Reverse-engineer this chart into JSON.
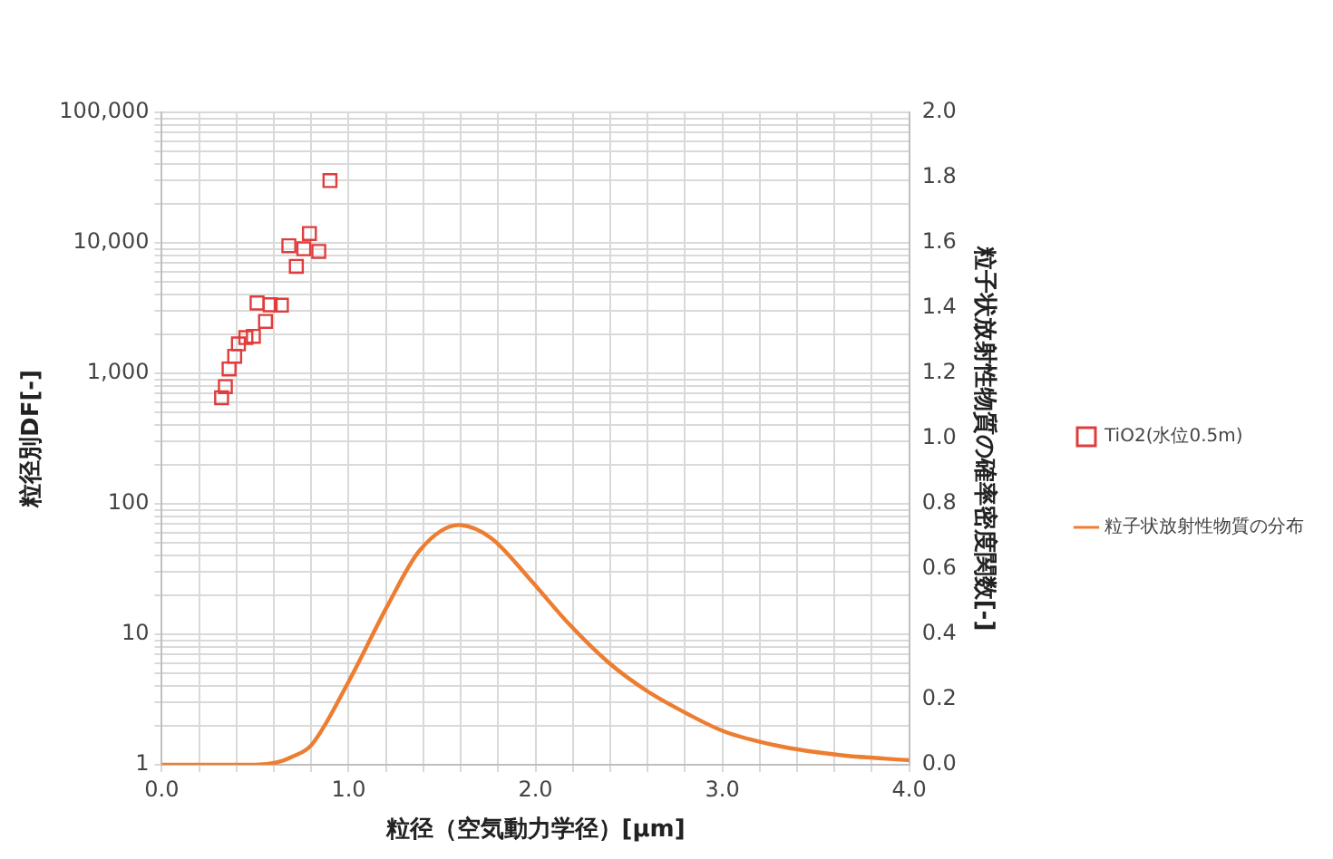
{
  "chart_data": {
    "type": "scatter",
    "xlabel": "粒径（空気動力学径）[μm]",
    "ylabel": "粒径別DF[-]",
    "y2label": "粒子状放射性物質の確率密度関数[-]",
    "log": "y",
    "grid": true,
    "legend": "right",
    "xlim": [
      0,
      4
    ],
    "xticks": [
      {
        "value": 0,
        "label": "0.0"
      },
      {
        "value": 0.2,
        "label": null
      },
      {
        "value": 0.4,
        "label": null
      },
      {
        "value": 0.6,
        "label": null
      },
      {
        "value": 0.8,
        "label": null
      },
      {
        "value": 1,
        "label": "1.0"
      },
      {
        "value": 1.2,
        "label": null
      },
      {
        "value": 1.4,
        "label": null
      },
      {
        "value": 1.6,
        "label": null
      },
      {
        "value": 1.8,
        "label": null
      },
      {
        "value": 2,
        "label": "2.0"
      },
      {
        "value": 2.2,
        "label": null
      },
      {
        "value": 2.4,
        "label": null
      },
      {
        "value": 2.6,
        "label": null
      },
      {
        "value": 2.8,
        "label": null
      },
      {
        "value": 3,
        "label": "3.0"
      },
      {
        "value": 3.2,
        "label": null
      },
      {
        "value": 3.4,
        "label": null
      },
      {
        "value": 3.6,
        "label": null
      },
      {
        "value": 3.8,
        "label": null
      },
      {
        "value": 4,
        "label": "4.0"
      }
    ],
    "ylim": [
      1,
      100000
    ],
    "yticks": [
      1,
      {
        "value": 2,
        "label": null
      },
      {
        "value": 3,
        "label": null
      },
      {
        "value": 4,
        "label": null
      },
      {
        "value": 5,
        "label": null
      },
      {
        "value": 6,
        "label": null
      },
      {
        "value": 7,
        "label": null
      },
      {
        "value": 8,
        "label": null
      },
      {
        "value": 9,
        "label": null
      },
      10,
      {
        "value": 20,
        "label": null
      },
      {
        "value": 30,
        "label": null
      },
      {
        "value": 40,
        "label": null
      },
      {
        "value": 50,
        "label": null
      },
      {
        "value": 60,
        "label": null
      },
      {
        "value": 70,
        "label": null
      },
      {
        "value": 80,
        "label": null
      },
      {
        "value": 90,
        "label": null
      },
      100,
      {
        "value": 200,
        "label": null
      },
      {
        "value": 300,
        "label": null
      },
      {
        "value": 400,
        "label": null
      },
      {
        "value": 500,
        "label": null
      },
      {
        "value": 600,
        "label": null
      },
      {
        "value": 700,
        "label": null
      },
      {
        "value": 800,
        "label": null
      },
      {
        "value": 900,
        "label": null
      },
      {
        "value": 1000,
        "label": "1,000"
      },
      {
        "value": 2000,
        "label": null
      },
      {
        "value": 3000,
        "label": null
      },
      {
        "value": 4000,
        "label": null
      },
      {
        "value": 5000,
        "label": null
      },
      {
        "value": 6000,
        "label": null
      },
      {
        "value": 7000,
        "label": null
      },
      {
        "value": 8000,
        "label": null
      },
      {
        "value": 9000,
        "label": null
      },
      {
        "value": 10000,
        "label": "10,000"
      },
      {
        "value": 20000,
        "label": null
      },
      {
        "value": 30000,
        "label": null
      },
      {
        "value": 40000,
        "label": null
      },
      {
        "value": 50000,
        "label": null
      },
      {
        "value": 60000,
        "label": null
      },
      {
        "value": 70000,
        "label": null
      },
      {
        "value": 80000,
        "label": null
      },
      {
        "value": 90000,
        "label": null
      },
      {
        "value": 100000,
        "label": "100,000"
      }
    ],
    "y2lim": [
      0,
      2
    ],
    "y2ticks": [
      {
        "value": 0,
        "label": "0.0"
      },
      0.2,
      0.4,
      0.6,
      0.8,
      {
        "value": 1,
        "label": "1.0"
      },
      1.2,
      1.4,
      1.6,
      1.8,
      {
        "value": 2,
        "label": "2.0"
      }
    ],
    "series": [
      {
        "name": "TiO2(水位0.5m)",
        "color": "#e03c3c",
        "marker": "square",
        "x": [
          0.32,
          0.34,
          0.36,
          0.39,
          0.41,
          0.45,
          0.49,
          0.51,
          0.555,
          0.58,
          0.64,
          0.68,
          0.72,
          0.76,
          0.79,
          0.84,
          0.9
        ],
        "values": [
          650,
          790,
          1080,
          1350,
          1680,
          1880,
          1920,
          3460,
          2500,
          3350,
          3330,
          9500,
          6600,
          9000,
          11800,
          8600,
          30000
        ]
      },
      {
        "name": "粒子状放射性物質の分布",
        "type": "line",
        "axis": "y2",
        "color": "#ed7d31",
        "marker": "none",
        "line_style": "solid",
        "x": [
          0,
          0.3,
          0.5,
          0.62,
          0.7,
          0.8,
          1.0,
          1.21,
          1.38,
          1.59,
          1.76,
          1.97,
          2.18,
          2.39,
          2.6,
          2.81,
          3.01,
          3.29,
          3.64,
          4.0
        ],
        "values": [
          0,
          0,
          0,
          0.008,
          0.025,
          0.06,
          0.255,
          0.49,
          0.657,
          0.735,
          0.696,
          0.569,
          0.431,
          0.314,
          0.225,
          0.157,
          0.102,
          0.059,
          0.029,
          0.014
        ]
      }
    ]
  }
}
